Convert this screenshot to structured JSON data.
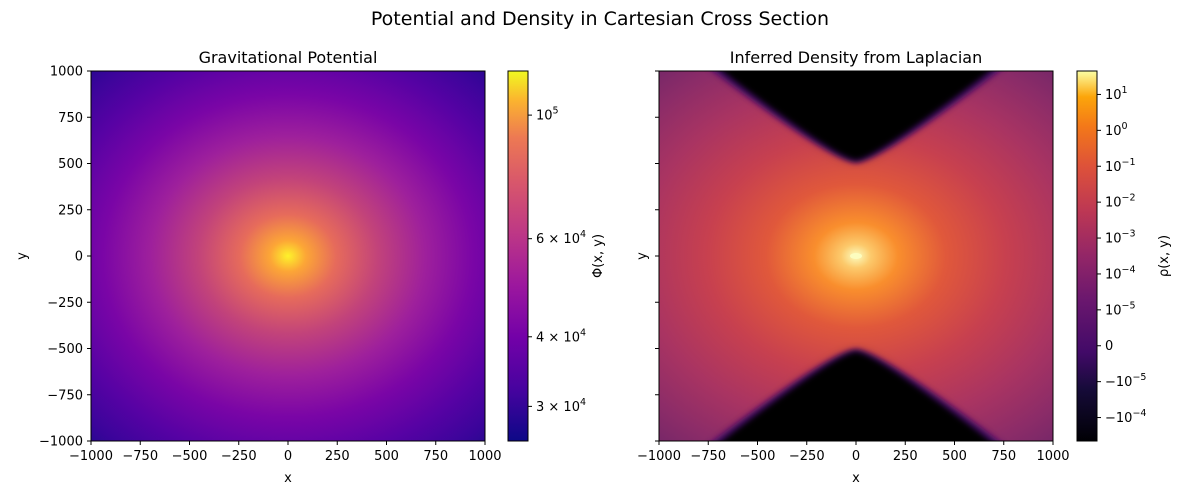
{
  "figure": {
    "suptitle": "Potential and Density in Cartesian Cross Section"
  },
  "chart_data": [
    {
      "type": "heatmap",
      "title": "Gravitational Potential",
      "xlabel": "x",
      "ylabel": "y",
      "xlim": [
        -1000,
        1000
      ],
      "ylim": [
        -1000,
        1000
      ],
      "x_ticks": [
        -1000,
        -750,
        -500,
        -250,
        0,
        250,
        500,
        750,
        1000
      ],
      "y_ticks": [
        1000,
        750,
        500,
        250,
        0,
        -250,
        -500,
        -750,
        -1000
      ],
      "x_tick_labels": [
        "−1000",
        "−750",
        "−500",
        "−250",
        "0",
        "250",
        "500",
        "750",
        "1000"
      ],
      "y_tick_labels": [
        "1000",
        "750",
        "500",
        "250",
        "0",
        "−250",
        "−500",
        "−750",
        "−1000"
      ],
      "colormap": "plasma",
      "peak_location": [
        0,
        0
      ],
      "colorbar": {
        "label": "Φ(x, y)",
        "scale": "log",
        "range": [
          26000,
          120000
        ],
        "ticks": [
          {
            "value": 100000,
            "label": "10",
            "sup": "5"
          },
          {
            "value": 60000,
            "label": "6 × 10",
            "sup": "4"
          },
          {
            "value": 40000,
            "label": "4 × 10",
            "sup": "4"
          },
          {
            "value": 30000,
            "label": "3 × 10",
            "sup": "4"
          }
        ]
      }
    },
    {
      "type": "heatmap",
      "title": "Inferred Density from Laplacian",
      "xlabel": "x",
      "ylabel": "y",
      "xlim": [
        -1000,
        1000
      ],
      "ylim": [
        -1000,
        1000
      ],
      "x_ticks": [
        -1000,
        -750,
        -500,
        -250,
        0,
        250,
        500,
        750,
        1000
      ],
      "y_ticks": [
        1000,
        750,
        500,
        250,
        0,
        -250,
        -500,
        -750,
        -1000
      ],
      "x_tick_labels": [
        "−1000",
        "−750",
        "−500",
        "−250",
        "0",
        "250",
        "500",
        "750",
        "1000"
      ],
      "y_tick_labels": [],
      "colormap": "inferno",
      "peak_location": [
        0,
        0
      ],
      "colorbar": {
        "label": "ρ(x, y)",
        "scale": "symlog",
        "ticks": [
          {
            "value": 10,
            "label": "10",
            "sup": "1"
          },
          {
            "value": 1,
            "label": "10",
            "sup": "0"
          },
          {
            "value": 0.1,
            "label": "10",
            "sup": "−1"
          },
          {
            "value": 0.01,
            "label": "10",
            "sup": "−2"
          },
          {
            "value": 0.001,
            "label": "10",
            "sup": "−3"
          },
          {
            "value": 0.0001,
            "label": "10",
            "sup": "−4"
          },
          {
            "value": 1e-05,
            "label": "10",
            "sup": "−5"
          },
          {
            "value": 0,
            "label": "0",
            "sup": ""
          },
          {
            "value": -1e-05,
            "label": "−10",
            "sup": "−5"
          },
          {
            "value": -0.0001,
            "label": "−10",
            "sup": "−4"
          }
        ]
      }
    }
  ]
}
